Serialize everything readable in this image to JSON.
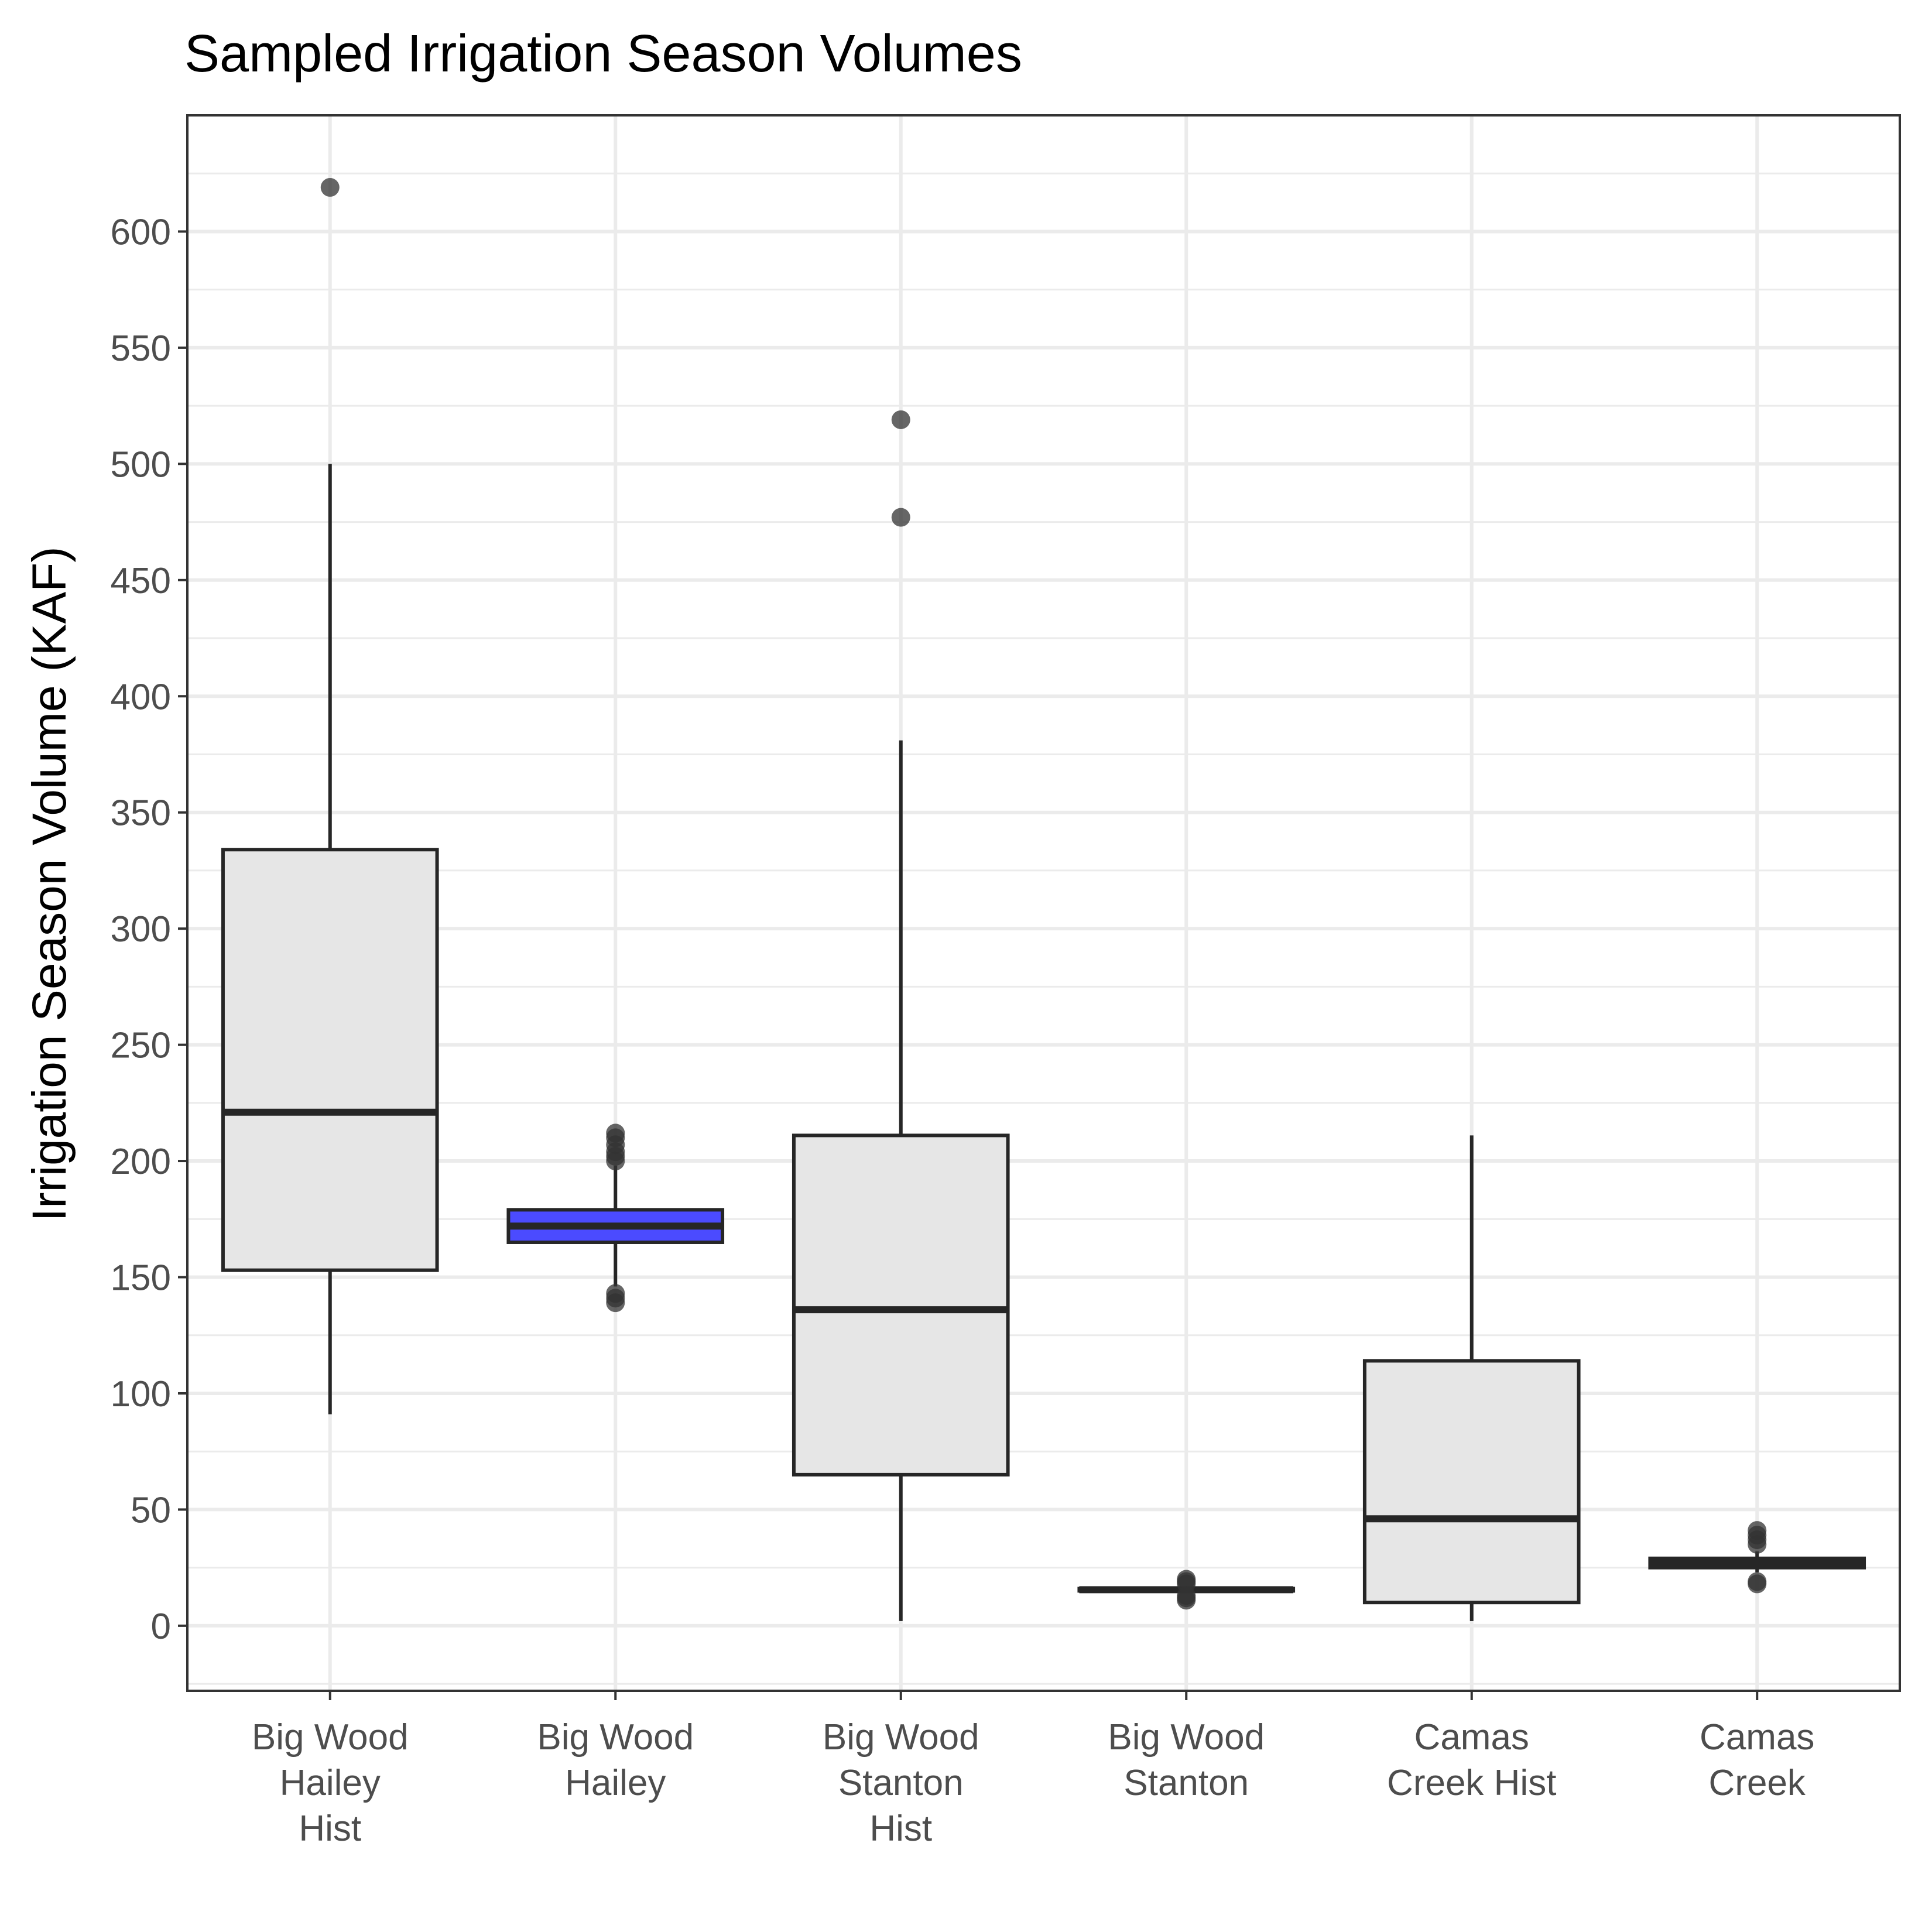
{
  "chart_data": {
    "type": "boxplot",
    "title": "Sampled Irrigation Season Volumes",
    "xlabel": "",
    "ylabel": "Irrigation Season Volume (KAF)",
    "ylim": [
      -28,
      650
    ],
    "yticks": [
      0,
      50,
      100,
      150,
      200,
      250,
      300,
      350,
      400,
      450,
      500,
      550,
      600
    ],
    "grid": true,
    "legend": "none",
    "colors": {
      "box_fill": "#e6e6e6",
      "highlight_fill": "#4b4bff",
      "outline": "#262626",
      "outlier": "#333333",
      "grid": "#ebebeb",
      "panel_border": "#333333"
    },
    "categories": [
      [
        "Big Wood",
        "Hailey",
        "Hist"
      ],
      [
        "Big Wood",
        "Hailey"
      ],
      [
        "Big Wood",
        "Stanton",
        "Hist"
      ],
      [
        "Big Wood",
        "Stanton"
      ],
      [
        "Camas",
        "Creek Hist"
      ],
      [
        "Camas",
        "Creek"
      ]
    ],
    "boxes": [
      {
        "min": 91,
        "q1": 153,
        "median": 221,
        "q3": 334,
        "max": 500,
        "outliers": [
          619
        ],
        "fill": "#e6e6e6"
      },
      {
        "min": 146,
        "q1": 165,
        "median": 172,
        "q3": 179,
        "max": 198,
        "outliers": [
          139,
          141,
          143,
          200,
          202,
          204,
          207,
          210,
          212
        ],
        "fill": "#4b4bff"
      },
      {
        "min": 2,
        "q1": 65,
        "median": 136,
        "q3": 211,
        "max": 381,
        "outliers": [
          477,
          519
        ],
        "fill": "#e6e6e6"
      },
      {
        "min": 14,
        "q1": 15,
        "median": 15.5,
        "q3": 16,
        "max": 17,
        "outliers": [
          11,
          12,
          13,
          18,
          19,
          20
        ],
        "fill": "#e6e6e6"
      },
      {
        "min": 2,
        "q1": 10,
        "median": 46,
        "q3": 114,
        "max": 211,
        "outliers": [],
        "fill": "#e6e6e6"
      },
      {
        "min": 23,
        "q1": 25,
        "median": 27,
        "q3": 29,
        "max": 32,
        "outliers": [
          18,
          19,
          35,
          37,
          39,
          41
        ],
        "fill": "#e6e6e6"
      }
    ]
  }
}
